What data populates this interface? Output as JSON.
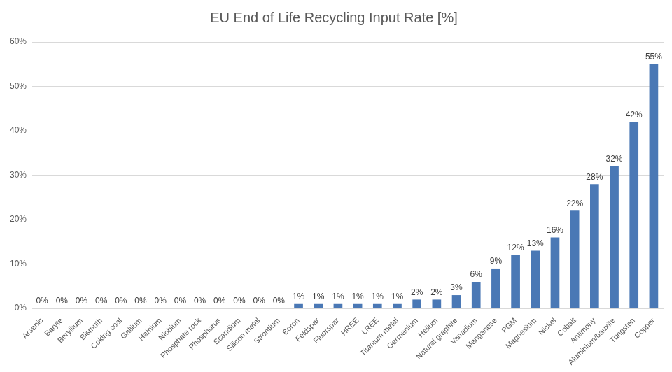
{
  "chart_data": {
    "type": "bar",
    "title": "EU End of Life Recycling Input Rate [%]",
    "categories": [
      "Arsenic",
      "Baryte",
      "Beryllium",
      "Bismuth",
      "Coking coal",
      "Gallium",
      "Hafnium",
      "Niobium",
      "Phosphate rock",
      "Phosphorus",
      "Scandium",
      "Silicon metal",
      "Strontium",
      "Boron",
      "Feldspar",
      "Fluorspar",
      "HREE",
      "LREE",
      "Titanium metal",
      "Germanium",
      "Helium",
      "Natural graphite",
      "Vanadium",
      "Manganese",
      "PGM",
      "Magnesium",
      "Nickel",
      "Cobalt",
      "Antimony",
      "Aluminium/bauxite",
      "Tungsten",
      "Copper"
    ],
    "values": [
      0,
      0,
      0,
      0,
      0,
      0,
      0,
      0,
      0,
      0,
      0,
      0,
      0,
      1,
      1,
      1,
      1,
      1,
      1,
      2,
      2,
      3,
      6,
      9,
      12,
      13,
      16,
      22,
      28,
      32,
      42,
      55
    ],
    "value_labels": [
      "0%",
      "0%",
      "0%",
      "0%",
      "0%",
      "0%",
      "0%",
      "0%",
      "0%",
      "0%",
      "0%",
      "0%",
      "0%",
      "1%",
      "1%",
      "1%",
      "1%",
      "1%",
      "1%",
      "2%",
      "2%",
      "3%",
      "6%",
      "9%",
      "12%",
      "13%",
      "16%",
      "22%",
      "28%",
      "32%",
      "42%",
      "55%"
    ],
    "color": "#4a78b5",
    "ylim": [
      0,
      60
    ],
    "yticks": [
      {
        "value": 0,
        "label": "0%"
      },
      {
        "value": 10,
        "label": "10%"
      },
      {
        "value": 20,
        "label": "20%"
      },
      {
        "value": 30,
        "label": "30%"
      },
      {
        "value": 40,
        "label": "40%"
      },
      {
        "value": 50,
        "label": "50%"
      },
      {
        "value": 60,
        "label": "60%"
      }
    ],
    "grid": true,
    "data_labels": true
  }
}
